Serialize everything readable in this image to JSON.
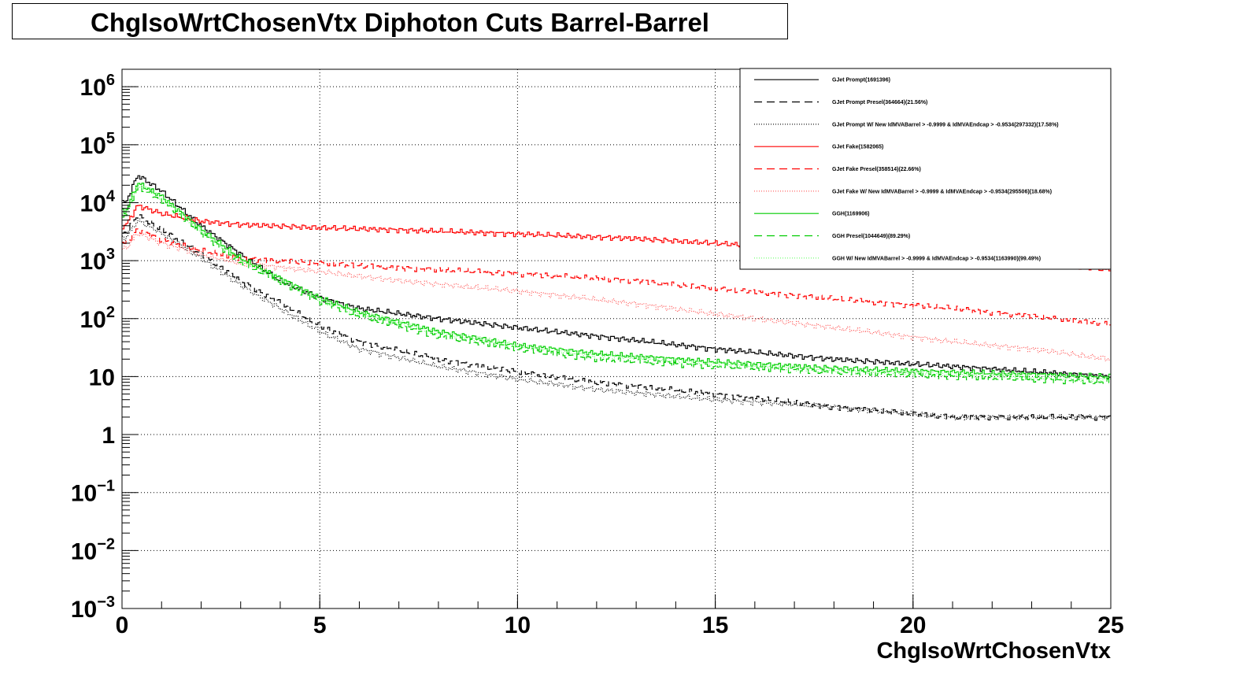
{
  "chart_data": {
    "type": "line",
    "title": "ChgIsoWrtChosenVtx Diphoton Cuts Barrel-Barrel",
    "xlabel": "ChgIsoWrtChosenVtx",
    "ylabel": "",
    "xlim": [
      0,
      25
    ],
    "ylim": [
      0.001,
      2000000
    ],
    "y_scale": "log",
    "grid": true,
    "legend_position": "top-right",
    "x_ticks": [
      "0",
      "5",
      "10",
      "15",
      "20",
      "25"
    ],
    "y_ticks": [
      {
        "base": "10",
        "exp": "6"
      },
      {
        "base": "10",
        "exp": "5"
      },
      {
        "base": "10",
        "exp": "4"
      },
      {
        "base": "10",
        "exp": "3"
      },
      {
        "base": "10",
        "exp": "2"
      },
      {
        "base": "10",
        "exp": ""
      },
      {
        "base": "1",
        "exp": ""
      },
      {
        "base": "10",
        "exp": "−1"
      },
      {
        "base": "10",
        "exp": "−2"
      },
      {
        "base": "10",
        "exp": "−3"
      }
    ],
    "series": [
      {
        "name": "GJet Prompt(1691396)",
        "color": "#000000",
        "style": "solid",
        "x": [
          0.1,
          0.4,
          1,
          2,
          3,
          4,
          5,
          6,
          8,
          10,
          12,
          15,
          18,
          21,
          25
        ],
        "y": [
          10000,
          30000,
          16000,
          4000,
          1300,
          450,
          230,
          150,
          100,
          70,
          50,
          30,
          20,
          15,
          10
        ]
      },
      {
        "name": "GJet Prompt Presel(364664)(21.56%)",
        "color": "#000000",
        "style": "dashed",
        "x": [
          0.1,
          0.4,
          1,
          2,
          3,
          4,
          5,
          6,
          8,
          10,
          12,
          15,
          18,
          21,
          25
        ],
        "y": [
          3000,
          6000,
          3500,
          1300,
          450,
          190,
          75,
          40,
          20,
          12,
          8,
          5,
          3,
          2,
          2
        ]
      },
      {
        "name": "GJet Prompt W/ New IdMVABarrel > -0.9999 & IdMVAEndcap > -0.9534(297332)(17.58%)",
        "color": "#000000",
        "style": "dotted",
        "x": [
          0.1,
          0.4,
          1,
          2,
          3,
          4,
          5,
          6,
          8,
          10,
          12,
          15,
          18,
          21,
          25
        ],
        "y": [
          2500,
          5000,
          3000,
          1100,
          380,
          150,
          60,
          30,
          15,
          9,
          6,
          4,
          3,
          2,
          2
        ]
      },
      {
        "name": "GJet Fake(1582065)",
        "color": "#ff0000",
        "style": "solid",
        "x": [
          0.1,
          0.4,
          1,
          2,
          3,
          5,
          7,
          10,
          13,
          15,
          18,
          21,
          23,
          25
        ],
        "y": [
          4000,
          9000,
          6500,
          4800,
          4200,
          3700,
          3400,
          2900,
          2400,
          2000,
          1500,
          1100,
          900,
          700
        ]
      },
      {
        "name": "GJet Fake Presel(358514)(22.66%)",
        "color": "#ff0000",
        "style": "dashed",
        "x": [
          0.1,
          0.4,
          1,
          2,
          3,
          5,
          7,
          10,
          13,
          15,
          18,
          21,
          23,
          25
        ],
        "y": [
          2000,
          3500,
          2300,
          1500,
          1100,
          900,
          750,
          600,
          450,
          330,
          220,
          150,
          110,
          80
        ]
      },
      {
        "name": "GJet Fake W/ New IdMVABarrel > -0.9999 & IdMVAEndcap > -0.9534(295506)(18.68%)",
        "color": "#ff5555",
        "style": "dotted",
        "x": [
          0.1,
          0.4,
          1,
          2,
          3,
          5,
          7,
          10,
          13,
          15,
          18,
          21,
          23,
          25
        ],
        "y": [
          1600,
          3000,
          2000,
          1300,
          900,
          650,
          450,
          300,
          180,
          120,
          70,
          40,
          30,
          20
        ]
      },
      {
        "name": "GGH(1169906)",
        "color": "#00cc00",
        "style": "solid",
        "x": [
          0.1,
          0.4,
          1,
          2,
          3,
          4,
          5,
          6,
          8,
          10,
          12,
          15,
          18,
          21,
          25
        ],
        "y": [
          7000,
          22000,
          13000,
          3500,
          1100,
          500,
          230,
          130,
          60,
          35,
          25,
          18,
          14,
          12,
          10
        ]
      },
      {
        "name": "GGH Presel(1044649)(89.29%)",
        "color": "#00cc00",
        "style": "dashed",
        "x": [
          0.1,
          0.4,
          1,
          2,
          3,
          4,
          5,
          6,
          8,
          10,
          12,
          15,
          18,
          21,
          25
        ],
        "y": [
          6000,
          19000,
          11000,
          3000,
          950,
          430,
          200,
          110,
          50,
          30,
          20,
          15,
          12,
          10,
          8
        ]
      },
      {
        "name": "GGH W/ New IdMVABarrel > -0.9999 & IdMVAEndcap > -0.9534(1163990)(99.49%)",
        "color": "#66ff66",
        "style": "dotted",
        "x": [
          0.1,
          0.4,
          1,
          2,
          3,
          4,
          5,
          6,
          8,
          10,
          12,
          15,
          18,
          21,
          25
        ],
        "y": [
          6500,
          21000,
          12500,
          3400,
          1050,
          480,
          220,
          125,
          58,
          34,
          24,
          17,
          13,
          11,
          9
        ]
      }
    ]
  }
}
